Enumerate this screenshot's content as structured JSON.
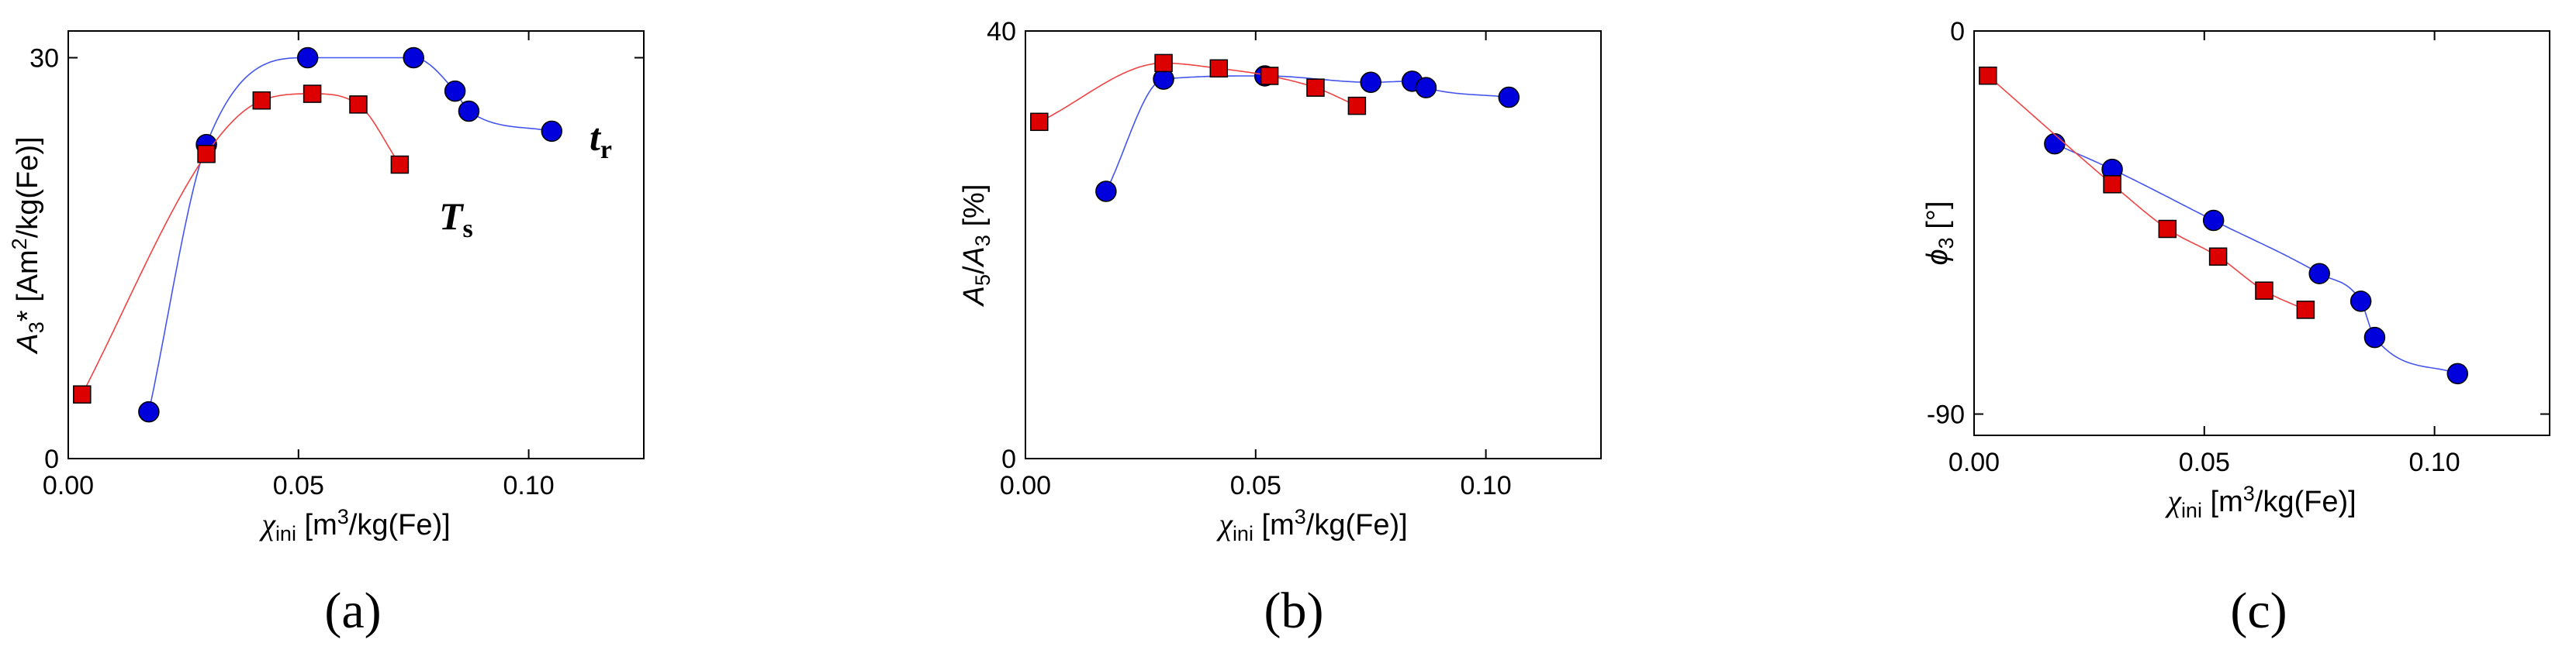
{
  "colors": {
    "tr": "#0000dd",
    "ts": "#dd0000",
    "tr_line": "#4455ee",
    "ts_line": "#ee4444"
  },
  "chart_data": [
    {
      "type": "scatter",
      "panel": "(a)",
      "xlabel": {
        "symbol": "χ",
        "sub": "ini",
        "unit": " [m",
        "sup": "3",
        "unit2": "/kg(Fe)]"
      },
      "ylabel": {
        "symbol": "A",
        "sub": "3",
        "rest": "* [Am",
        "sup": "2",
        "rest2": "/kg(Fe)]"
      },
      "xlim": [
        0,
        0.125
      ],
      "ylim": [
        0,
        32
      ],
      "xticks": [
        0,
        0.05,
        0.1
      ],
      "xtick_labels": [
        "0.00",
        "0.05",
        "0.10"
      ],
      "yticks": [
        0,
        30
      ],
      "ytick_labels": [
        "0",
        "30"
      ],
      "series": [
        {
          "name": "t",
          "sub": "r",
          "marker": "circle",
          "x": [
            0.0175,
            0.03,
            0.052,
            0.075,
            0.084,
            0.087,
            0.105
          ],
          "y": [
            3.5,
            23.5,
            30,
            30,
            27.5,
            26,
            24.5
          ]
        },
        {
          "name": "T",
          "sub": "s",
          "marker": "square",
          "x": [
            0.003,
            0.03,
            0.042,
            0.053,
            0.063,
            0.072
          ],
          "y": [
            4.8,
            22.8,
            26.8,
            27.3,
            26.5,
            22
          ]
        }
      ]
    },
    {
      "type": "scatter",
      "panel": "(b)",
      "xlabel": {
        "symbol": "χ",
        "sub": "ini",
        "unit": " [m",
        "sup": "3",
        "unit2": "/kg(Fe)]"
      },
      "ylabel": {
        "symbol": "A",
        "sub": "5",
        "mid": "/",
        "symbol2": "A",
        "sub2": "3",
        "rest": " [%]"
      },
      "xlim": [
        0,
        0.125
      ],
      "ylim": [
        0,
        40
      ],
      "xticks": [
        0,
        0.05,
        0.1
      ],
      "xtick_labels": [
        "0.00",
        "0.05",
        "0.10"
      ],
      "yticks": [
        0,
        40
      ],
      "ytick_labels": [
        "0",
        "40"
      ],
      "series": [
        {
          "name": "t",
          "sub": "r",
          "marker": "circle",
          "x": [
            0.0175,
            0.03,
            0.052,
            0.075,
            0.084,
            0.087,
            0.105
          ],
          "y": [
            25,
            35.5,
            35.8,
            35.2,
            35.3,
            34.7,
            33.8
          ]
        },
        {
          "name": "T",
          "sub": "s",
          "marker": "square",
          "x": [
            0.003,
            0.03,
            0.042,
            0.053,
            0.063,
            0.072
          ],
          "y": [
            31.5,
            37,
            36.5,
            35.8,
            34.7,
            33
          ]
        }
      ]
    },
    {
      "type": "scatter",
      "panel": "(c)",
      "xlabel": {
        "symbol": "χ",
        "sub": "ini",
        "unit": " [m",
        "sup": "3",
        "unit2": "/kg(Fe)]"
      },
      "ylabel": {
        "symbol": "ϕ",
        "sub": "3",
        "rest": " [°]"
      },
      "xlim": [
        0,
        0.125
      ],
      "ylim": [
        -95,
        0
      ],
      "xticks": [
        0,
        0.05,
        0.1
      ],
      "xtick_labels": [
        "0.00",
        "0.05",
        "0.10"
      ],
      "yticks": [
        -90,
        0
      ],
      "ytick_labels": [
        "-90",
        "0"
      ],
      "series": [
        {
          "name": "t",
          "sub": "r",
          "marker": "circle",
          "x": [
            0.0175,
            0.03,
            0.052,
            0.075,
            0.084,
            0.087,
            0.105
          ],
          "y": [
            -26.5,
            -32.5,
            -44.5,
            -57,
            -63.5,
            -72,
            -80.5
          ]
        },
        {
          "name": "T",
          "sub": "s",
          "marker": "square",
          "x": [
            0.003,
            0.03,
            0.042,
            0.053,
            0.063,
            0.072
          ],
          "y": [
            -10.5,
            -36,
            -46.5,
            -53,
            -61,
            -65.5
          ]
        }
      ]
    }
  ]
}
